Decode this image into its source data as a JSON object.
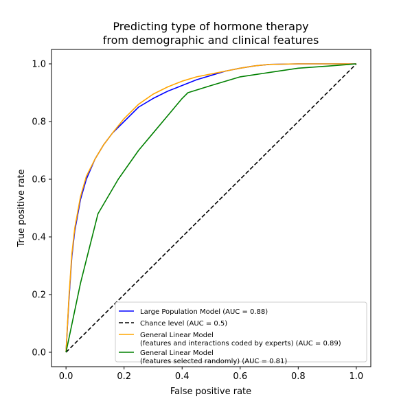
{
  "chart_data": {
    "type": "line",
    "title": [
      "Predicting type of hormone therapy",
      "from demographic and clinical features"
    ],
    "xlabel": "False positive rate",
    "ylabel": "True positive rate",
    "xlim": [
      -0.05,
      1.05
    ],
    "ylim": [
      -0.05,
      1.05
    ],
    "xticks": [
      0.0,
      0.2,
      0.4,
      0.6,
      0.8,
      1.0
    ],
    "yticks": [
      0.0,
      0.2,
      0.4,
      0.6,
      0.8,
      1.0
    ],
    "xtick_labels": [
      "0.0",
      "0.2",
      "0.4",
      "0.6",
      "0.8",
      "1.0"
    ],
    "ytick_labels": [
      "0.0",
      "0.2",
      "0.4",
      "0.6",
      "0.8",
      "1.0"
    ],
    "grid": false,
    "legend_position": "lower-right",
    "series": [
      {
        "name": "Large Population Model (AUC = 0.88)",
        "legend_lines": [
          "Large Population Model (AUC = 0.88)"
        ],
        "color": "#0000ff",
        "dash": "solid",
        "x": [
          0.0,
          0.01,
          0.02,
          0.03,
          0.05,
          0.07,
          0.1,
          0.13,
          0.16,
          0.2,
          0.25,
          0.3,
          0.35,
          0.4,
          0.45,
          0.5,
          0.55,
          0.6,
          0.65,
          0.7,
          0.8,
          0.9,
          1.0
        ],
        "y": [
          0.0,
          0.18,
          0.33,
          0.42,
          0.53,
          0.6,
          0.67,
          0.72,
          0.76,
          0.8,
          0.85,
          0.88,
          0.905,
          0.925,
          0.945,
          0.96,
          0.975,
          0.985,
          0.993,
          0.998,
          1.0,
          1.0,
          1.0
        ]
      },
      {
        "name": "Chance level (AUC = 0.5)",
        "legend_lines": [
          "Chance level (AUC = 0.5)"
        ],
        "color": "#000000",
        "dash": "dashed",
        "x": [
          0.0,
          1.0
        ],
        "y": [
          0.0,
          1.0
        ]
      },
      {
        "name": "General Linear Model (features and interactions coded by experts) (AUC = 0.89)",
        "legend_lines": [
          "General Linear Model",
          "(features and interactions coded by experts) (AUC = 0.89)"
        ],
        "color": "#ffa500",
        "dash": "solid",
        "x": [
          0.0,
          0.01,
          0.02,
          0.03,
          0.05,
          0.07,
          0.1,
          0.13,
          0.16,
          0.2,
          0.25,
          0.3,
          0.35,
          0.4,
          0.45,
          0.5,
          0.55,
          0.6,
          0.65,
          0.7,
          0.8,
          0.9,
          1.0
        ],
        "y": [
          0.0,
          0.19,
          0.34,
          0.43,
          0.54,
          0.61,
          0.67,
          0.72,
          0.76,
          0.81,
          0.86,
          0.895,
          0.92,
          0.94,
          0.955,
          0.965,
          0.975,
          0.985,
          0.993,
          0.998,
          1.0,
          1.0,
          1.0
        ]
      },
      {
        "name": "General Linear Model (features selected randomly) (AUC = 0.81)",
        "legend_lines": [
          "General Linear Model",
          "(features selected randomly) (AUC = 0.81)"
        ],
        "color": "#008000",
        "dash": "solid",
        "x": [
          0.0,
          0.05,
          0.11,
          0.18,
          0.25,
          0.3,
          0.35,
          0.4,
          0.42,
          0.5,
          0.6,
          0.7,
          0.8,
          0.9,
          1.0
        ],
        "y": [
          0.0,
          0.24,
          0.48,
          0.6,
          0.7,
          0.76,
          0.82,
          0.88,
          0.9,
          0.925,
          0.955,
          0.97,
          0.985,
          0.992,
          1.0
        ]
      }
    ]
  }
}
